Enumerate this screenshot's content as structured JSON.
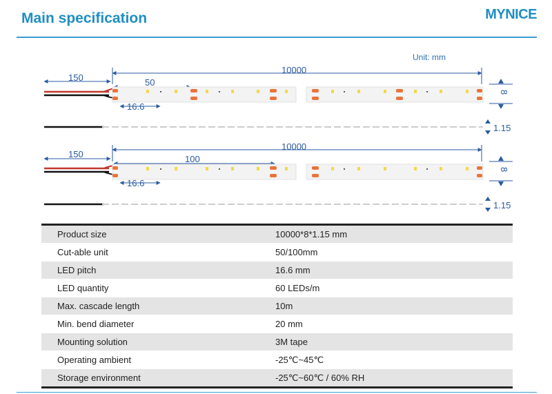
{
  "header": {
    "title": "Main specification",
    "brand": "MYNICE"
  },
  "diagram": {
    "unit_label": "Unit: mm",
    "strip_a": {
      "wire_len": "150",
      "cut_unit": "50",
      "total_len": "10000",
      "pitch": "16.6",
      "width": "8",
      "thickness": "1.15"
    },
    "strip_b": {
      "wire_len": "150",
      "cut_unit": "100",
      "total_len": "10000",
      "pitch": "16.6",
      "width": "8",
      "thickness": "1.15"
    },
    "colors": {
      "dimension": "#2a5aa0",
      "pad": "#e8743b",
      "led": "#f3d94a",
      "wire_red": "#c0392b",
      "wire_black": "#111111"
    }
  },
  "specs": [
    {
      "label": "Product size",
      "value": "10000*8*1.15 mm"
    },
    {
      "label": "Cut-able unit",
      "value": "50/100mm"
    },
    {
      "label": "LED pitch",
      "value": "16.6 mm"
    },
    {
      "label": "LED quantity",
      "value": "60 LEDs/m"
    },
    {
      "label": "Max. cascade length",
      "value": "10m"
    },
    {
      "label": "Min. bend diameter",
      "value": "20 mm"
    },
    {
      "label": "Mounting solution",
      "value": "3M tape"
    },
    {
      "label": "Operating ambient",
      "value": "-25℃~45℃"
    },
    {
      "label": "Storage environment",
      "value": "-25℃~60℃ / 60% RH"
    }
  ]
}
